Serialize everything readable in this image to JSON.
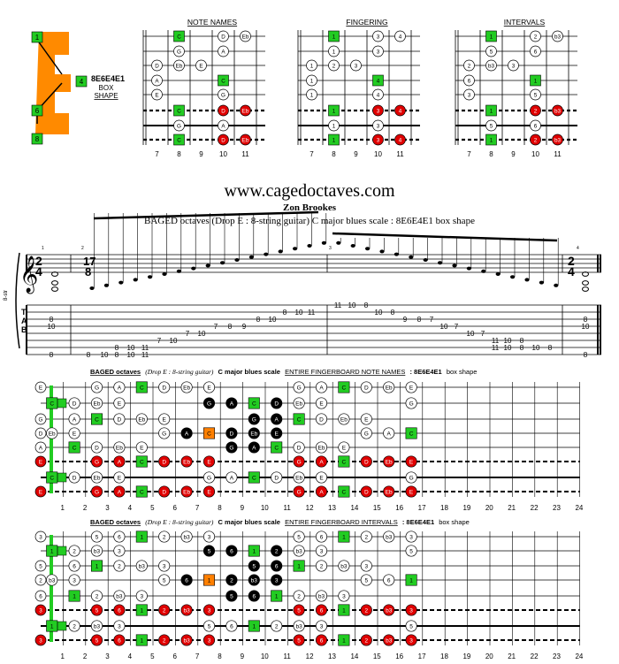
{
  "header": {
    "shape_label": "8E6E4E1",
    "shape_sub1": "BOX",
    "shape_sub2": "SHAPE",
    "e_markers": [
      "1",
      "4",
      "6",
      "8"
    ]
  },
  "small_panels": {
    "titles": [
      "NOTE NAMES",
      "FINGERING",
      "INTERVALS"
    ],
    "fret_numbers": [
      "7",
      "8",
      "9",
      "10",
      "11"
    ],
    "note_names": [
      [
        {
          "f": 8,
          "t": "C",
          "k": "g"
        },
        {
          "f": 10,
          "t": "D",
          "k": "w"
        },
        {
          "f": 11,
          "t": "Eb",
          "k": "w"
        }
      ],
      [
        {
          "f": 8,
          "t": "G",
          "k": "w"
        },
        {
          "f": 10,
          "t": "A",
          "k": "w"
        }
      ],
      [
        {
          "f": 7,
          "t": "D",
          "k": "w"
        },
        {
          "f": 8,
          "t": "Eb",
          "k": "w"
        },
        {
          "f": 9,
          "t": "E",
          "k": "w"
        }
      ],
      [
        {
          "f": 7,
          "t": "A",
          "k": "w"
        },
        {
          "f": 10,
          "t": "C",
          "k": "g"
        }
      ],
      [
        {
          "f": 7,
          "t": "E",
          "k": "w"
        },
        {
          "f": 10,
          "t": "G",
          "k": "w"
        }
      ],
      [
        {
          "f": 8,
          "t": "C",
          "k": "g"
        },
        {
          "f": 10,
          "t": "D",
          "k": "r"
        },
        {
          "f": 11,
          "t": "Eb",
          "k": "r"
        }
      ],
      [
        {
          "f": 8,
          "t": "G",
          "k": "w"
        },
        {
          "f": 10,
          "t": "A",
          "k": "w"
        }
      ],
      [
        {
          "f": 8,
          "t": "C",
          "k": "g"
        },
        {
          "f": 10,
          "t": "D",
          "k": "r"
        },
        {
          "f": 11,
          "t": "Eb",
          "k": "r"
        }
      ]
    ],
    "fingering": [
      [
        {
          "f": 8,
          "t": "1",
          "k": "g"
        },
        {
          "f": 10,
          "t": "3",
          "k": "w"
        },
        {
          "f": 11,
          "t": "4",
          "k": "w"
        }
      ],
      [
        {
          "f": 8,
          "t": "1",
          "k": "w"
        },
        {
          "f": 10,
          "t": "3",
          "k": "w"
        }
      ],
      [
        {
          "f": 7,
          "t": "1",
          "k": "w"
        },
        {
          "f": 8,
          "t": "2",
          "k": "w"
        },
        {
          "f": 9,
          "t": "3",
          "k": "w"
        }
      ],
      [
        {
          "f": 7,
          "t": "1",
          "k": "w"
        },
        {
          "f": 10,
          "t": "4",
          "k": "g"
        }
      ],
      [
        {
          "f": 7,
          "t": "1",
          "k": "w"
        },
        {
          "f": 10,
          "t": "4",
          "k": "w"
        }
      ],
      [
        {
          "f": 8,
          "t": "1",
          "k": "g"
        },
        {
          "f": 10,
          "t": "3",
          "k": "r"
        },
        {
          "f": 11,
          "t": "4",
          "k": "r"
        }
      ],
      [
        {
          "f": 8,
          "t": "1",
          "k": "w"
        },
        {
          "f": 10,
          "t": "3",
          "k": "w"
        }
      ],
      [
        {
          "f": 8,
          "t": "1",
          "k": "g"
        },
        {
          "f": 10,
          "t": "3",
          "k": "r"
        },
        {
          "f": 11,
          "t": "4",
          "k": "r"
        }
      ]
    ],
    "intervals": [
      [
        {
          "f": 8,
          "t": "1",
          "k": "g"
        },
        {
          "f": 10,
          "t": "2",
          "k": "w"
        },
        {
          "f": 11,
          "t": "b3",
          "k": "w"
        }
      ],
      [
        {
          "f": 8,
          "t": "5",
          "k": "w"
        },
        {
          "f": 10,
          "t": "6",
          "k": "w"
        }
      ],
      [
        {
          "f": 7,
          "t": "2",
          "k": "w"
        },
        {
          "f": 8,
          "t": "b3",
          "k": "w"
        },
        {
          "f": 9,
          "t": "3",
          "k": "w"
        }
      ],
      [
        {
          "f": 7,
          "t": "6",
          "k": "w"
        },
        {
          "f": 10,
          "t": "1",
          "k": "g"
        }
      ],
      [
        {
          "f": 7,
          "t": "3",
          "k": "w"
        },
        {
          "f": 10,
          "t": "5",
          "k": "w"
        }
      ],
      [
        {
          "f": 8,
          "t": "1",
          "k": "g"
        },
        {
          "f": 10,
          "t": "2",
          "k": "r"
        },
        {
          "f": 11,
          "t": "b3",
          "k": "r"
        }
      ],
      [
        {
          "f": 8,
          "t": "5",
          "k": "w"
        },
        {
          "f": 10,
          "t": "6",
          "k": "w"
        }
      ],
      [
        {
          "f": 8,
          "t": "1",
          "k": "g"
        },
        {
          "f": 10,
          "t": "2",
          "k": "r"
        },
        {
          "f": 11,
          "t": "b3",
          "k": "r"
        }
      ]
    ]
  },
  "title": {
    "site": "www.cagedoctaves.com",
    "author": "Zon Brookes",
    "subtitle": "BAGED octaves (Drop E : 8-string guitar) C major blues scale : 8E6E4E1 box shape"
  },
  "score": {
    "side_label": "8-str",
    "time1_top": "2",
    "time1_bot": "4",
    "tuplet_top": "17",
    "tuplet_bot": "8",
    "time2_top": "2",
    "time2_bot": "4",
    "measure_numbers": [
      "1",
      "2",
      "3",
      "4"
    ],
    "tab_letters": [
      "T",
      "A",
      "B"
    ],
    "tab_m1": [
      "8",
      "10",
      "8"
    ],
    "tab_m4": [
      "8",
      "10",
      "8"
    ],
    "tab_run": [
      "8",
      "10",
      "8",
      "10",
      "11",
      "7",
      "10",
      "7",
      "10",
      "7",
      "8",
      "9",
      "8",
      "10",
      "8",
      "10",
      "11",
      "11",
      "10",
      "8",
      "10",
      "8",
      "9",
      "8",
      "7",
      "10",
      "7",
      "10",
      "7",
      "11",
      "10",
      "8",
      "10",
      "8"
    ],
    "tab_run_low": [
      "8",
      "10",
      "11",
      "11",
      "10",
      "8"
    ]
  },
  "big_notes": {
    "title_a": "BAGED octaves",
    "title_b": "(Drop E : 8-string guitar)",
    "title_c": "C major blues scale",
    "title_d": "ENTIRE FINGERBOARD NOTE NAMES",
    "title_e": ": 8E6E4E1",
    "title_f": "box shape",
    "open": [
      {
        "t": "E",
        "k": "w"
      },
      {
        "t": "",
        "k": "g"
      },
      {
        "t": "G",
        "k": "w"
      },
      {
        "t": "D",
        "k": "w"
      },
      {
        "t": "A",
        "k": "w"
      },
      {
        "t": "E",
        "k": "r"
      },
      {
        "t": "",
        "k": "g"
      },
      {
        "t": "E",
        "k": "r"
      }
    ],
    "rows": [
      "..G.A.C.D.Eb.E....G.A.C.D.Eb.E",
      "C.D.Eb.E....G.A.C.D.Eb.E....G.",
      ".A.C.D.Eb.E....G.A.C.D.Eb.E..",
      "Eb.E....G.A.C.D.Eb.E....G.A.C",
      ".C.D.Eb.E....G.A.C.D.Eb.E....",
      "..G.A.C.D.Eb.E....G.A.C.D.Eb.E",
      "C.D.Eb.E....G.A.C.D.Eb.E....G.",
      "..G.A.C.D.Eb.E....G.A.C.D.Eb.E"
    ]
  },
  "big_intervals": {
    "title_d": "ENTIRE FINGERBOARD INTERVALS",
    "open": [
      {
        "t": "3",
        "k": "w"
      },
      {
        "t": "",
        "k": "g"
      },
      {
        "t": "5",
        "k": "w"
      },
      {
        "t": "2",
        "k": "w"
      },
      {
        "t": "6",
        "k": "w"
      },
      {
        "t": "3",
        "k": "r"
      },
      {
        "t": "",
        "k": "g"
      },
      {
        "t": "3",
        "k": "r"
      }
    ]
  },
  "bottom_frets": [
    "1",
    "2",
    "3",
    "4",
    "5",
    "6",
    "7",
    "8",
    "9",
    "10",
    "11",
    "12",
    "13",
    "14",
    "15",
    "16",
    "17",
    "18",
    "19",
    "20",
    "21",
    "22",
    "23",
    "24"
  ],
  "colors": {
    "green": "#22cc22",
    "red": "#e00000",
    "orange": "#ff8000",
    "black": "#000000",
    "gray": "#666666"
  }
}
